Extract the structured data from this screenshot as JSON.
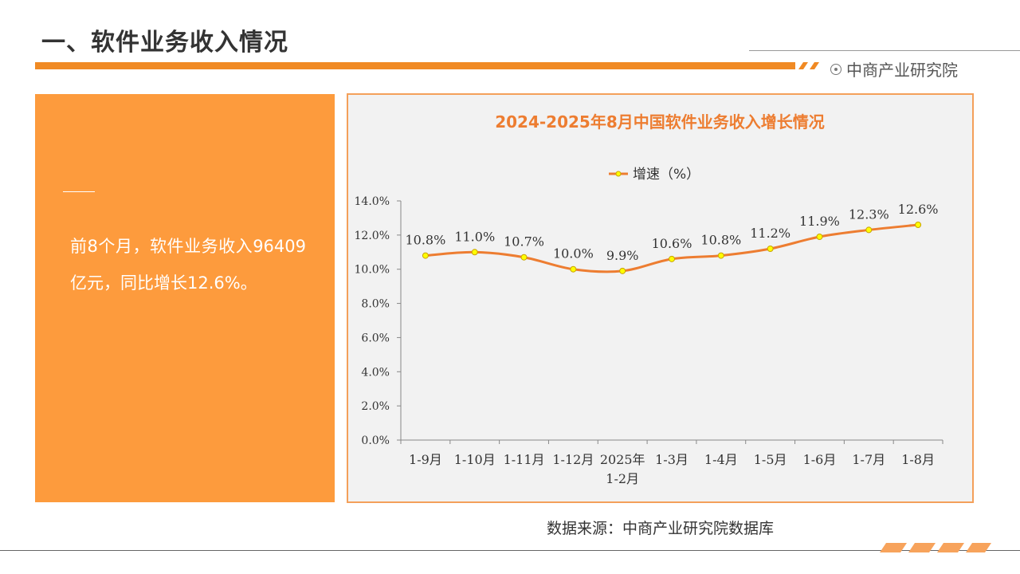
{
  "header": {
    "title": "一、软件业务收入情况",
    "brand": "中商产业研究院",
    "accent_color": "#f08a24",
    "brand_icon": "target-icon"
  },
  "summary": {
    "text": "前8个月，软件业务收入96409亿元，同比增长12.6%。",
    "background": "#fd9b3d"
  },
  "chart_data": {
    "type": "line",
    "title": "2024-2025年8月中国软件业务收入增长情况",
    "categories": [
      "1-9月",
      "1-10月",
      "1-11月",
      "1-12月",
      "2025年\n1-2月",
      "1-3月",
      "1-4月",
      "1-5月",
      "1-6月",
      "1-7月",
      "1-8月"
    ],
    "series": [
      {
        "name": "增速（%）",
        "values": [
          10.8,
          11.0,
          10.7,
          10.0,
          9.9,
          10.6,
          10.8,
          11.2,
          11.9,
          12.3,
          12.6
        ],
        "labels": [
          "10.8%",
          "11.0%",
          "10.7%",
          "10.0%",
          "9.9%",
          "10.6%",
          "10.8%",
          "11.2%",
          "11.9%",
          "12.3%",
          "12.6%"
        ],
        "line_color": "#ed7d31",
        "marker_color": "#ffff00"
      }
    ],
    "yticks": [
      "0.0%",
      "2.0%",
      "4.0%",
      "6.0%",
      "8.0%",
      "10.0%",
      "12.0%",
      "14.0%"
    ],
    "ylim": [
      0,
      14
    ],
    "xlabel": "",
    "ylabel": "",
    "legend_position": "top-center",
    "grid": false
  },
  "footer": {
    "source": "数据来源：中商产业研究院数据库"
  }
}
